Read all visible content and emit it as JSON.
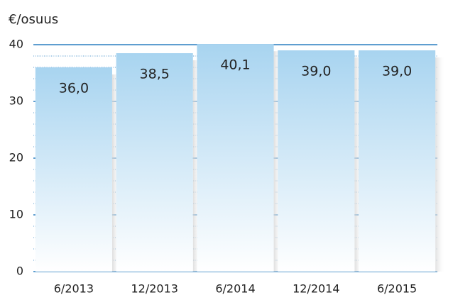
{
  "chart_data": {
    "type": "bar",
    "y_axis_label": "€/osuus",
    "categories": [
      "6/2013",
      "12/2013",
      "6/2014",
      "12/2014",
      "6/2015"
    ],
    "values": [
      36.0,
      38.5,
      40.1,
      39.0,
      39.0
    ],
    "value_labels": [
      "36,0",
      "38,5",
      "40,1",
      "39,0",
      "39,0"
    ],
    "color": "#a8d4f0",
    "ylim": [
      0,
      40
    ],
    "yticks": [
      0,
      10,
      20,
      30,
      40
    ],
    "minor_yticks": [
      2,
      4,
      6,
      8,
      12,
      14,
      16,
      18,
      22,
      24,
      26,
      28,
      32,
      34,
      36,
      38
    ],
    "grid": true
  }
}
